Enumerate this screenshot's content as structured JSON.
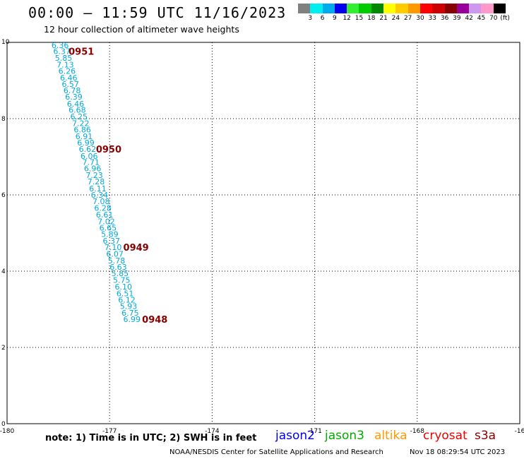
{
  "header": {
    "title": "00:00 – 11:59 UTC 11/16/2023",
    "subtitle": "12 hour collection of altimeter wave heights"
  },
  "legend": {
    "colors": [
      "#808080",
      "#00eeee",
      "#00aaee",
      "#0000ee",
      "#33ee33",
      "#00cc00",
      "#008800",
      "#ffff00",
      "#ffcc00",
      "#ff9900",
      "#ff0000",
      "#cc0000",
      "#880000",
      "#990099",
      "#cc99ee",
      "#ff99cc",
      "#000000"
    ],
    "labels": [
      "3",
      "6",
      "9",
      "12",
      "15",
      "18",
      "21",
      "24",
      "27",
      "30",
      "33",
      "36",
      "39",
      "42",
      "45",
      "70",
      "(ft)"
    ]
  },
  "map": {
    "x_ticks": [
      "-180",
      "-177",
      "-174",
      "-171",
      "-168",
      "-16"
    ],
    "y_ticks": [
      "0",
      "2",
      "4",
      "6",
      "8",
      "10"
    ],
    "x_range": [
      -180,
      -165
    ],
    "y_range": [
      0,
      10
    ],
    "grid": "dotted",
    "wave_color": "#00aadd",
    "time_color": "#880000",
    "wave_heights": [
      {
        "lon": -178.7,
        "lat": 9.93,
        "swh": "6.36"
      },
      {
        "lon": -178.65,
        "lat": 9.77,
        "swh": "6.37"
      },
      {
        "lon": -178.6,
        "lat": 9.59,
        "swh": "5.85"
      },
      {
        "lon": -178.55,
        "lat": 9.42,
        "swh": "7.13"
      },
      {
        "lon": -178.5,
        "lat": 9.25,
        "swh": "6.26"
      },
      {
        "lon": -178.45,
        "lat": 9.07,
        "swh": "6.46"
      },
      {
        "lon": -178.4,
        "lat": 8.91,
        "swh": "6.57"
      },
      {
        "lon": -178.35,
        "lat": 8.74,
        "swh": "6.78"
      },
      {
        "lon": -178.3,
        "lat": 8.57,
        "swh": "6.39"
      },
      {
        "lon": -178.25,
        "lat": 8.39,
        "swh": "6.46"
      },
      {
        "lon": -178.2,
        "lat": 8.23,
        "swh": "6.68"
      },
      {
        "lon": -178.15,
        "lat": 8.06,
        "swh": "6.25"
      },
      {
        "lon": -178.1,
        "lat": 7.88,
        "swh": "7.22"
      },
      {
        "lon": -178.05,
        "lat": 7.71,
        "swh": "6.86"
      },
      {
        "lon": -178.0,
        "lat": 7.54,
        "swh": "6.91"
      },
      {
        "lon": -177.95,
        "lat": 7.37,
        "swh": "6.99"
      },
      {
        "lon": -177.9,
        "lat": 7.2,
        "swh": "6.62"
      },
      {
        "lon": -177.85,
        "lat": 7.02,
        "swh": "6.06"
      },
      {
        "lon": -177.8,
        "lat": 6.86,
        "swh": "7.71"
      },
      {
        "lon": -177.75,
        "lat": 6.69,
        "swh": "6.96"
      },
      {
        "lon": -177.7,
        "lat": 6.52,
        "swh": "7.23"
      },
      {
        "lon": -177.65,
        "lat": 6.35,
        "swh": "7.28"
      },
      {
        "lon": -177.6,
        "lat": 6.17,
        "swh": "6.11"
      },
      {
        "lon": -177.55,
        "lat": 6.0,
        "swh": "6.34"
      },
      {
        "lon": -177.5,
        "lat": 5.83,
        "swh": "7.08"
      },
      {
        "lon": -177.45,
        "lat": 5.66,
        "swh": "6.28"
      },
      {
        "lon": -177.4,
        "lat": 5.48,
        "swh": "6.61"
      },
      {
        "lon": -177.35,
        "lat": 5.31,
        "swh": "7.02"
      },
      {
        "lon": -177.3,
        "lat": 5.14,
        "swh": "6.65"
      },
      {
        "lon": -177.25,
        "lat": 4.97,
        "swh": "5.89"
      },
      {
        "lon": -177.2,
        "lat": 4.8,
        "swh": "6.37"
      },
      {
        "lon": -177.15,
        "lat": 4.63,
        "swh": "7.10"
      },
      {
        "lon": -177.1,
        "lat": 4.45,
        "swh": "6.07"
      },
      {
        "lon": -177.05,
        "lat": 4.28,
        "swh": "5.78"
      },
      {
        "lon": -177.0,
        "lat": 4.11,
        "swh": "6.63"
      },
      {
        "lon": -176.95,
        "lat": 3.94,
        "swh": "5.85"
      },
      {
        "lon": -176.9,
        "lat": 3.77,
        "swh": "5.75"
      },
      {
        "lon": -176.85,
        "lat": 3.59,
        "swh": "6.10"
      },
      {
        "lon": -176.8,
        "lat": 3.42,
        "swh": "6.51"
      },
      {
        "lon": -176.75,
        "lat": 3.25,
        "swh": "6.12"
      },
      {
        "lon": -176.7,
        "lat": 3.08,
        "swh": "5.93"
      },
      {
        "lon": -176.65,
        "lat": 2.91,
        "swh": "6.75"
      },
      {
        "lon": -176.6,
        "lat": 2.74,
        "swh": "6.99"
      }
    ],
    "time_labels": [
      {
        "lon": -178.2,
        "lat": 9.77,
        "text": "0951"
      },
      {
        "lon": -177.4,
        "lat": 7.2,
        "text": "0950"
      },
      {
        "lon": -176.6,
        "lat": 4.63,
        "text": "0949"
      },
      {
        "lon": -176.05,
        "lat": 2.74,
        "text": "0948"
      }
    ]
  },
  "footer": {
    "note": "note: 1) Time is in UTC; 2) SWH is in feet",
    "satellites": [
      {
        "name": "jason2",
        "color": "#0000ee"
      },
      {
        "name": "jason3",
        "color": "#00aa00"
      },
      {
        "name": "altika",
        "color": "#ff9900"
      },
      {
        "name": "cryosat",
        "color": "#ee0000"
      },
      {
        "name": "s3a",
        "color": "#880000"
      }
    ],
    "credit": "NOAA/NESDIS Center for Satellite Applications and Research",
    "timestamp": "Nov 18 08:29:54 UTC 2023"
  }
}
